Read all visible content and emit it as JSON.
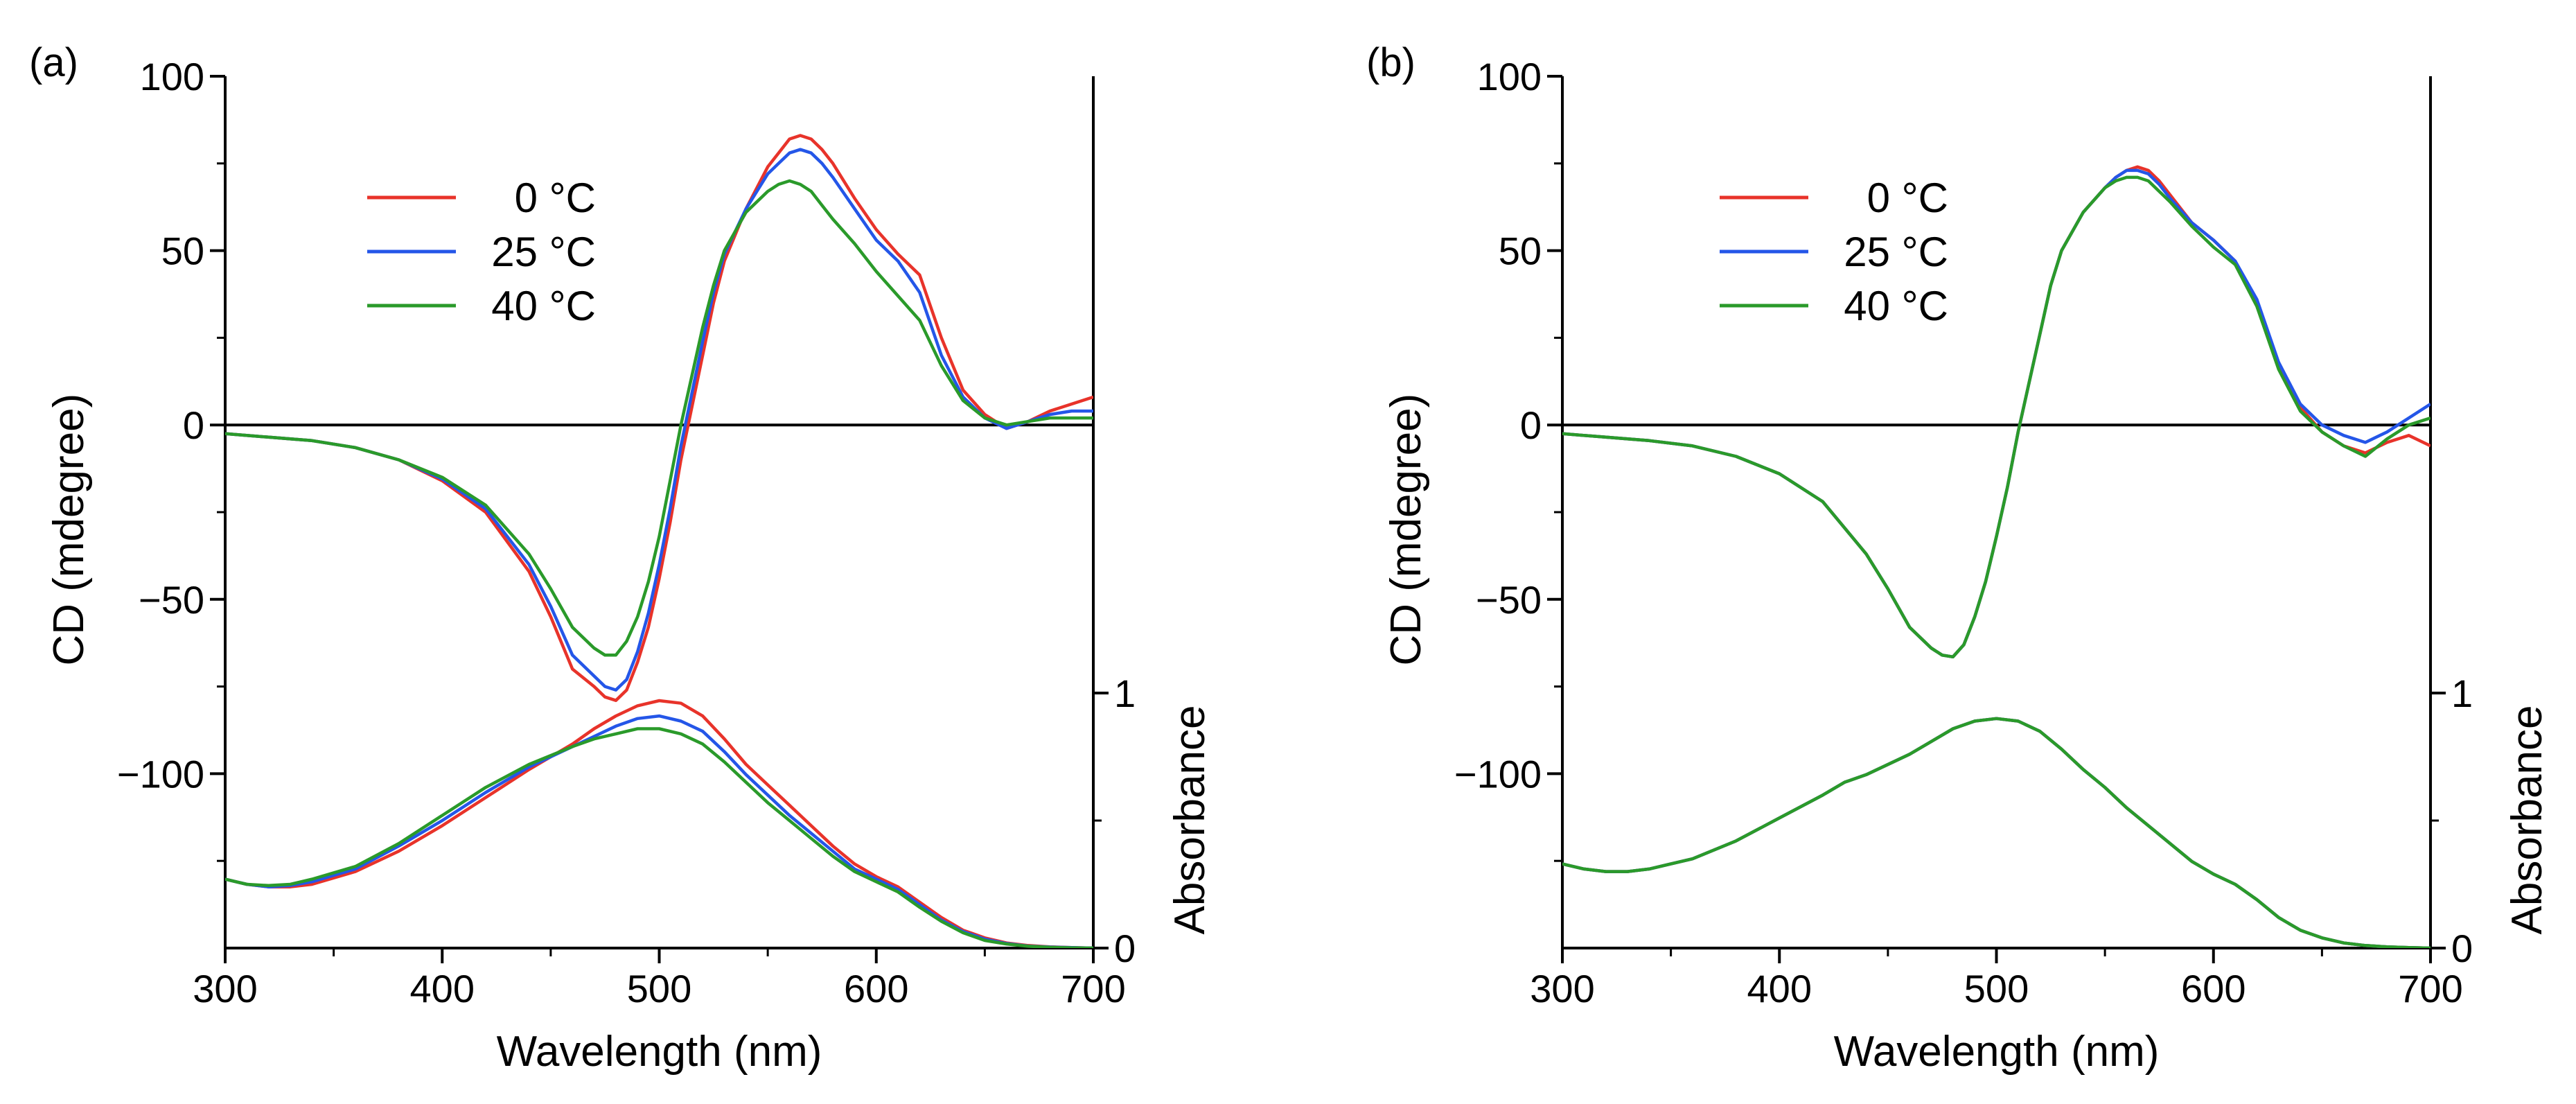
{
  "chart_data": [
    {
      "panel_label": "(a)",
      "type": "line",
      "xlabel": "Wavelength (nm)",
      "ylabel": "CD (mdegree)",
      "y2label": "Absorbance",
      "xlim": [
        300,
        700
      ],
      "ylim": [
        -150,
        100
      ],
      "y2lim": [
        0,
        3.4
      ],
      "xticks": [
        "300",
        "400",
        "500",
        "600",
        "700"
      ],
      "yticks": [
        "100",
        "50",
        "0",
        "−50",
        "−100"
      ],
      "y2ticks": [
        "1",
        "0"
      ],
      "legend": [
        "0 °C",
        "25 °C",
        "40 °C"
      ],
      "colors": [
        "#e8332a",
        "#2456e8",
        "#2a9a2a"
      ],
      "cd_series": [
        {
          "name": "0 °C",
          "x": [
            300,
            320,
            340,
            360,
            380,
            400,
            420,
            440,
            450,
            460,
            470,
            475,
            480,
            485,
            490,
            495,
            500,
            505,
            510,
            515,
            520,
            525,
            530,
            540,
            550,
            555,
            560,
            565,
            570,
            575,
            580,
            590,
            600,
            610,
            620,
            630,
            640,
            650,
            660,
            670,
            680,
            690,
            700
          ],
          "y": [
            -2.5,
            -3.5,
            -4.5,
            -6.5,
            -10,
            -16,
            -25,
            -42,
            -55,
            -70,
            -75,
            -78,
            -79,
            -76,
            -68,
            -58,
            -44,
            -28,
            -10,
            5,
            20,
            35,
            47,
            62,
            74,
            78,
            82,
            83,
            82,
            79,
            75,
            65,
            56,
            49,
            43,
            25,
            10,
            3,
            -1,
            1,
            4,
            6,
            8
          ]
        },
        {
          "name": "25 °C",
          "x": [
            300,
            320,
            340,
            360,
            380,
            400,
            420,
            440,
            450,
            460,
            470,
            475,
            480,
            485,
            490,
            495,
            500,
            505,
            510,
            515,
            520,
            525,
            530,
            540,
            550,
            555,
            560,
            565,
            570,
            575,
            580,
            590,
            600,
            610,
            620,
            630,
            640,
            650,
            660,
            670,
            680,
            690,
            700
          ],
          "y": [
            -2.5,
            -3.5,
            -4.5,
            -6.5,
            -10,
            -15.5,
            -24,
            -40,
            -52,
            -66,
            -72,
            -75,
            -76,
            -73,
            -65,
            -54,
            -40,
            -24,
            -6,
            9,
            24,
            38,
            49,
            62,
            72,
            75,
            78,
            79,
            78,
            75,
            71,
            62,
            53,
            47,
            38,
            20,
            8,
            2,
            -1,
            1,
            3,
            4,
            4
          ]
        },
        {
          "name": "40 °C",
          "x": [
            300,
            320,
            340,
            360,
            380,
            400,
            420,
            440,
            450,
            460,
            470,
            475,
            480,
            485,
            490,
            495,
            500,
            505,
            510,
            515,
            520,
            525,
            530,
            540,
            550,
            555,
            560,
            565,
            570,
            575,
            580,
            590,
            600,
            610,
            620,
            630,
            640,
            650,
            660,
            670,
            680,
            690,
            700
          ],
          "y": [
            -2.5,
            -3.5,
            -4.5,
            -6.5,
            -10,
            -15,
            -23,
            -37,
            -47,
            -58,
            -64,
            -66,
            -66,
            -62,
            -55,
            -45,
            -32,
            -16,
            0,
            14,
            28,
            40,
            50,
            61,
            67,
            69,
            70,
            69,
            67,
            63,
            59,
            52,
            44,
            37,
            30,
            17,
            7,
            2,
            0,
            1,
            2,
            2,
            2
          ]
        }
      ],
      "abs_series": [
        {
          "name": "0 °C",
          "x": [
            300,
            310,
            320,
            330,
            340,
            360,
            380,
            400,
            420,
            440,
            460,
            470,
            480,
            490,
            500,
            510,
            520,
            530,
            540,
            550,
            560,
            570,
            580,
            590,
            600,
            610,
            620,
            630,
            640,
            650,
            660,
            670,
            680,
            690,
            700
          ],
          "y": [
            0.27,
            0.25,
            0.24,
            0.24,
            0.25,
            0.3,
            0.38,
            0.48,
            0.59,
            0.7,
            0.8,
            0.86,
            0.91,
            0.95,
            0.97,
            0.96,
            0.91,
            0.82,
            0.72,
            0.64,
            0.56,
            0.48,
            0.4,
            0.33,
            0.28,
            0.24,
            0.18,
            0.12,
            0.07,
            0.04,
            0.02,
            0.01,
            0.005,
            0.002,
            0
          ]
        },
        {
          "name": "25 °C",
          "x": [
            300,
            310,
            320,
            330,
            340,
            360,
            380,
            400,
            420,
            440,
            460,
            470,
            480,
            490,
            500,
            510,
            520,
            530,
            540,
            550,
            560,
            570,
            580,
            590,
            600,
            610,
            620,
            630,
            640,
            650,
            660,
            670,
            680,
            690,
            700
          ],
          "y": [
            0.27,
            0.25,
            0.24,
            0.245,
            0.26,
            0.31,
            0.4,
            0.5,
            0.61,
            0.71,
            0.79,
            0.83,
            0.87,
            0.9,
            0.91,
            0.89,
            0.85,
            0.77,
            0.68,
            0.6,
            0.52,
            0.45,
            0.38,
            0.31,
            0.27,
            0.23,
            0.17,
            0.11,
            0.065,
            0.035,
            0.018,
            0.008,
            0.004,
            0.002,
            0
          ]
        },
        {
          "name": "40 °C",
          "x": [
            300,
            310,
            320,
            330,
            340,
            360,
            380,
            400,
            420,
            440,
            460,
            470,
            480,
            490,
            500,
            510,
            520,
            530,
            540,
            550,
            560,
            570,
            580,
            590,
            600,
            610,
            620,
            630,
            640,
            650,
            660,
            670,
            680,
            690,
            700
          ],
          "y": [
            0.27,
            0.25,
            0.245,
            0.25,
            0.27,
            0.32,
            0.41,
            0.52,
            0.63,
            0.72,
            0.79,
            0.82,
            0.84,
            0.86,
            0.86,
            0.84,
            0.8,
            0.73,
            0.65,
            0.57,
            0.5,
            0.43,
            0.36,
            0.3,
            0.26,
            0.22,
            0.16,
            0.105,
            0.06,
            0.03,
            0.016,
            0.007,
            0.003,
            0.001,
            0
          ]
        }
      ]
    },
    {
      "panel_label": "(b)",
      "type": "line",
      "xlabel": "Wavelength (nm)",
      "ylabel": "CD (mdegree)",
      "y2label": "Absorbance",
      "xlim": [
        300,
        700
      ],
      "ylim": [
        -150,
        100
      ],
      "y2lim": [
        0,
        3.4
      ],
      "xticks": [
        "300",
        "400",
        "500",
        "600",
        "700"
      ],
      "yticks": [
        "100",
        "50",
        "0",
        "−50",
        "−100"
      ],
      "y2ticks": [
        "1",
        "0"
      ],
      "legend": [
        "0 °C",
        "25 °C",
        "40 °C"
      ],
      "colors": [
        "#e8332a",
        "#2456e8",
        "#2a9a2a"
      ],
      "cd_series": [
        {
          "name": "0 °C",
          "x": [
            300,
            320,
            340,
            360,
            380,
            400,
            420,
            440,
            450,
            460,
            470,
            475,
            480,
            485,
            490,
            495,
            500,
            505,
            510,
            515,
            520,
            525,
            530,
            540,
            550,
            555,
            560,
            565,
            570,
            575,
            580,
            590,
            600,
            610,
            620,
            630,
            640,
            650,
            660,
            670,
            680,
            690,
            700
          ],
          "y": [
            -2.5,
            -3.5,
            -4.5,
            -6,
            -9,
            -14,
            -22,
            -37,
            -47,
            -58,
            -64,
            -66,
            -66.5,
            -63,
            -55,
            -45,
            -32,
            -18,
            -2,
            12,
            26,
            40,
            50,
            61,
            68,
            71,
            73,
            74,
            73,
            70,
            66,
            58,
            53,
            47,
            35,
            17,
            5,
            -2,
            -6,
            -8,
            -5,
            -3,
            -6
          ]
        },
        {
          "name": "25 °C",
          "x": [
            300,
            320,
            340,
            360,
            380,
            400,
            420,
            440,
            450,
            460,
            470,
            475,
            480,
            485,
            490,
            495,
            500,
            505,
            510,
            515,
            520,
            525,
            530,
            540,
            550,
            555,
            560,
            565,
            570,
            575,
            580,
            590,
            600,
            610,
            620,
            630,
            640,
            650,
            660,
            670,
            680,
            690,
            700
          ],
          "y": [
            -2.5,
            -3.5,
            -4.5,
            -6,
            -9,
            -14,
            -22,
            -37,
            -47,
            -58,
            -64,
            -66,
            -66.5,
            -63,
            -55,
            -45,
            -32,
            -18,
            -2,
            12,
            26,
            40,
            50,
            61,
            68,
            71,
            73,
            73,
            72,
            69,
            65,
            58,
            53,
            47,
            36,
            18,
            6,
            0,
            -3,
            -5,
            -2,
            2,
            6
          ]
        },
        {
          "name": "40 °C",
          "x": [
            300,
            320,
            340,
            360,
            380,
            400,
            420,
            440,
            450,
            460,
            470,
            475,
            480,
            485,
            490,
            495,
            500,
            505,
            510,
            515,
            520,
            525,
            530,
            540,
            550,
            555,
            560,
            565,
            570,
            575,
            580,
            590,
            600,
            610,
            620,
            630,
            640,
            650,
            660,
            670,
            680,
            690,
            700
          ],
          "y": [
            -2.5,
            -3.5,
            -4.5,
            -6,
            -9,
            -14,
            -22,
            -37,
            -47,
            -58,
            -64,
            -66,
            -66.5,
            -63,
            -55,
            -45,
            -32,
            -18,
            -2,
            12,
            26,
            40,
            50,
            61,
            68,
            70,
            71,
            71,
            70,
            67,
            64,
            57,
            51,
            46,
            34,
            16,
            4,
            -2,
            -6,
            -9,
            -4,
            0,
            2
          ]
        }
      ],
      "abs_series": [
        {
          "name": "0 °C",
          "x": [
            300,
            310,
            320,
            330,
            340,
            360,
            380,
            400,
            420,
            430,
            440,
            460,
            470,
            480,
            490,
            500,
            510,
            520,
            530,
            540,
            550,
            560,
            570,
            580,
            590,
            600,
            610,
            620,
            630,
            640,
            650,
            660,
            670,
            680,
            690,
            700
          ],
          "y": [
            0.33,
            0.31,
            0.3,
            0.3,
            0.31,
            0.35,
            0.42,
            0.51,
            0.6,
            0.65,
            0.68,
            0.76,
            0.81,
            0.86,
            0.89,
            0.9,
            0.89,
            0.85,
            0.78,
            0.7,
            0.63,
            0.55,
            0.48,
            0.41,
            0.34,
            0.29,
            0.25,
            0.19,
            0.12,
            0.07,
            0.04,
            0.02,
            0.01,
            0.005,
            0.002,
            0
          ]
        },
        {
          "name": "25 °C",
          "x": [
            300,
            310,
            320,
            330,
            340,
            360,
            380,
            400,
            420,
            430,
            440,
            460,
            470,
            480,
            490,
            500,
            510,
            520,
            530,
            540,
            550,
            560,
            570,
            580,
            590,
            600,
            610,
            620,
            630,
            640,
            650,
            660,
            670,
            680,
            690,
            700
          ],
          "y": [
            0.33,
            0.31,
            0.3,
            0.3,
            0.31,
            0.35,
            0.42,
            0.51,
            0.6,
            0.65,
            0.68,
            0.76,
            0.81,
            0.86,
            0.89,
            0.9,
            0.89,
            0.85,
            0.78,
            0.7,
            0.63,
            0.55,
            0.48,
            0.41,
            0.34,
            0.29,
            0.25,
            0.19,
            0.12,
            0.07,
            0.04,
            0.02,
            0.01,
            0.005,
            0.002,
            0
          ]
        },
        {
          "name": "40 °C",
          "x": [
            300,
            310,
            320,
            330,
            340,
            360,
            380,
            400,
            420,
            430,
            440,
            460,
            470,
            480,
            490,
            500,
            510,
            520,
            530,
            540,
            550,
            560,
            570,
            580,
            590,
            600,
            610,
            620,
            630,
            640,
            650,
            660,
            670,
            680,
            690,
            700
          ],
          "y": [
            0.33,
            0.31,
            0.3,
            0.3,
            0.31,
            0.35,
            0.42,
            0.51,
            0.6,
            0.65,
            0.68,
            0.76,
            0.81,
            0.86,
            0.89,
            0.9,
            0.89,
            0.85,
            0.78,
            0.7,
            0.63,
            0.55,
            0.48,
            0.41,
            0.34,
            0.29,
            0.25,
            0.19,
            0.12,
            0.07,
            0.04,
            0.02,
            0.01,
            0.005,
            0.002,
            0
          ]
        }
      ]
    }
  ]
}
